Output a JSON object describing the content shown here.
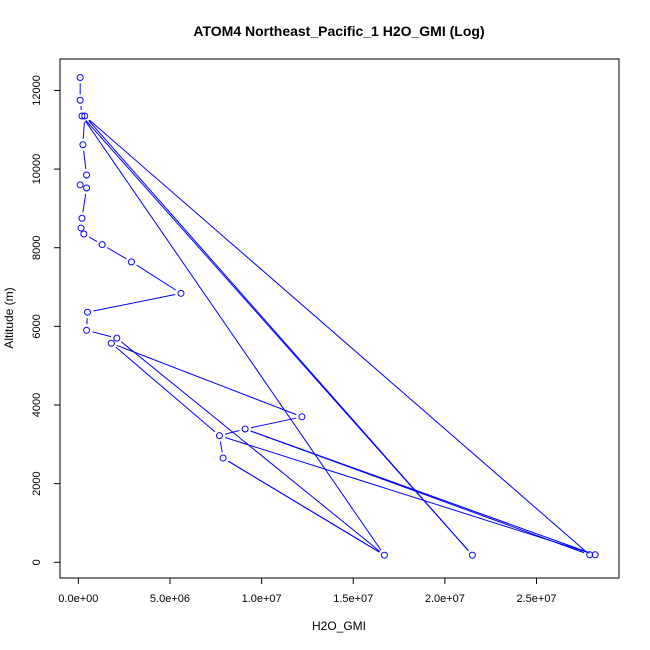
{
  "chart_data": {
    "type": "line",
    "title": "ATOM4 Northeast_Pacific_1 H2O_GMI (Log)",
    "xlabel": "H2O_GMI",
    "ylabel": "Altitude (m)",
    "xlim": [
      -1000000,
      29500000
    ],
    "ylim": [
      -400,
      12800
    ],
    "x_ticks": [
      0,
      5000000,
      10000000,
      15000000,
      20000000,
      25000000
    ],
    "x_tick_labels": [
      "0.0e+00",
      "5.0e+06",
      "1.0e+07",
      "1.5e+07",
      "2.0e+07",
      "2.5e+07"
    ],
    "y_ticks": [
      0,
      2000,
      4000,
      6000,
      8000,
      10000,
      12000
    ],
    "y_tick_labels": [
      "0",
      "2000",
      "4000",
      "6000",
      "8000",
      "10000",
      "12000"
    ],
    "grid": false,
    "series": [
      {
        "color": "#0000ff",
        "points": [
          {
            "x": 100000,
            "y": 12330
          },
          {
            "x": 100000,
            "y": 11750
          },
          {
            "x": 200000,
            "y": 11350
          },
          {
            "x": 350000,
            "y": 11350
          },
          {
            "x": 250000,
            "y": 10620
          },
          {
            "x": 450000,
            "y": 9850
          },
          {
            "x": 100000,
            "y": 9600
          },
          {
            "x": 450000,
            "y": 9520
          },
          {
            "x": 200000,
            "y": 8750
          },
          {
            "x": 150000,
            "y": 8500
          },
          {
            "x": 300000,
            "y": 8350
          },
          {
            "x": 1300000,
            "y": 8080
          },
          {
            "x": 2900000,
            "y": 7640
          },
          {
            "x": 5600000,
            "y": 6840
          },
          {
            "x": 500000,
            "y": 6360
          },
          {
            "x": 450000,
            "y": 5900
          },
          {
            "x": 2100000,
            "y": 5700
          },
          {
            "x": 1800000,
            "y": 5570
          },
          {
            "x": 12200000,
            "y": 3700
          },
          {
            "x": 9100000,
            "y": 3390
          },
          {
            "x": 7700000,
            "y": 3220
          },
          {
            "x": 7900000,
            "y": 2650
          },
          {
            "x": 16700000,
            "y": 180
          },
          {
            "x": 21500000,
            "y": 180
          },
          {
            "x": 27900000,
            "y": 190
          },
          {
            "x": 28200000,
            "y": 190
          }
        ],
        "path_order": [
          0,
          1,
          2,
          3,
          4,
          5,
          6,
          7,
          8,
          9,
          10,
          11,
          12,
          13,
          14,
          15,
          16,
          17,
          18,
          19,
          20,
          21,
          22,
          2,
          23,
          3,
          24,
          19,
          25,
          20,
          17,
          16,
          22,
          21
        ]
      }
    ]
  }
}
